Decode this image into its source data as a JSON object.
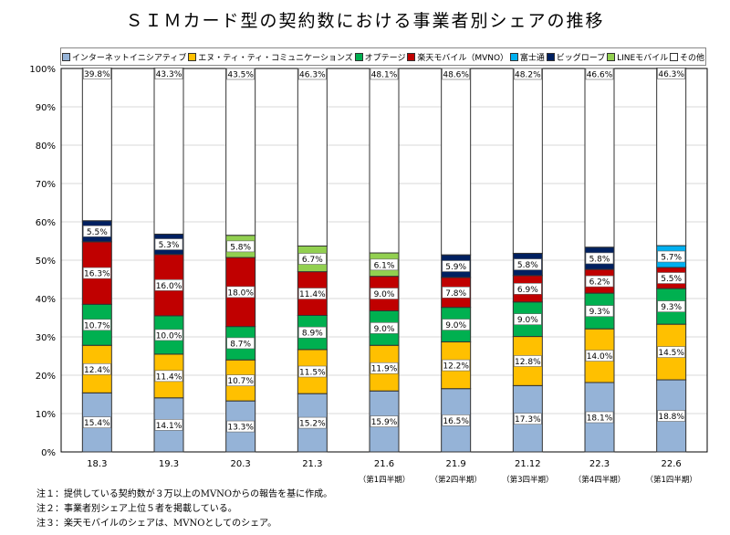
{
  "chart_data": {
    "type": "stacked-bar",
    "title": "ＳＩＭカード型の契約数における事業者別シェアの推移",
    "categories": [
      "18.3",
      "19.3",
      "20.3",
      "21.3",
      "21.6",
      "21.9",
      "21.12",
      "22.3",
      "22.6"
    ],
    "sublabels": [
      "",
      "",
      "",
      "",
      "（第1四半期）",
      "（第2四半期）",
      "（第3四半期）",
      "（第4四半期）",
      "（第1四半期）"
    ],
    "ylim": [
      0,
      100
    ],
    "yticks": [
      "0%",
      "10%",
      "20%",
      "30%",
      "40%",
      "50%",
      "60%",
      "70%",
      "80%",
      "90%",
      "100%"
    ],
    "grid": true,
    "legend_position": "top",
    "series": [
      {
        "name": "インターネットイニシアティブ",
        "color": "#95b3d7",
        "values": [
          15.4,
          14.1,
          13.3,
          15.2,
          15.9,
          16.5,
          17.3,
          18.1,
          18.8
        ]
      },
      {
        "name": "エヌ・ティ・ティ・コミュニケーションズ",
        "color": "#ffc000",
        "values": [
          12.4,
          11.4,
          10.7,
          11.5,
          11.9,
          12.2,
          12.8,
          14.0,
          14.5
        ]
      },
      {
        "name": "オプテージ",
        "color": "#00b050",
        "values": [
          10.7,
          10.0,
          8.7,
          8.9,
          9.0,
          9.0,
          9.0,
          9.3,
          9.3
        ]
      },
      {
        "name": "楽天モバイル（MVNO）",
        "color": "#c00000",
        "values": [
          16.3,
          16.0,
          18.0,
          11.4,
          9.0,
          7.8,
          6.9,
          6.2,
          5.5
        ]
      },
      {
        "name": "富士通",
        "color": "#00b0f0",
        "values": [
          null,
          null,
          null,
          null,
          null,
          null,
          null,
          null,
          5.7
        ]
      },
      {
        "name": "ビッグローブ",
        "color": "#002060",
        "values": [
          5.5,
          5.3,
          null,
          null,
          null,
          5.9,
          5.8,
          5.8,
          null
        ]
      },
      {
        "name": "LINEモバイル",
        "color": "#92d050",
        "values": [
          null,
          null,
          5.8,
          6.7,
          6.1,
          null,
          null,
          null,
          null
        ]
      },
      {
        "name": "その他",
        "color": "#ffffff",
        "values": [
          39.8,
          43.3,
          43.5,
          46.3,
          48.1,
          48.6,
          48.2,
          46.6,
          46.3
        ]
      }
    ]
  },
  "notes": [
    "注１：提供している契約数が３万以上のMVNOからの報告を基に作成。",
    "注２：事業者別シェア上位５者を掲載している。",
    "注３：楽天モバイルのシェアは、MVNOとしてのシェア。"
  ]
}
